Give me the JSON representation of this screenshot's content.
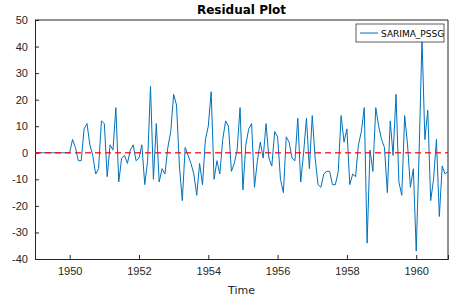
{
  "chart_data": {
    "type": "line",
    "title": "Residual Plot",
    "x_label": "Time",
    "x": [
      1949,
      1949.083,
      1949.167,
      1949.25,
      1949.333,
      1949.417,
      1949.5,
      1949.583,
      1949.667,
      1949.75,
      1949.833,
      1949.917,
      1950,
      1950.083,
      1950.167,
      1950.25,
      1950.333,
      1950.417,
      1950.5,
      1950.583,
      1950.667,
      1950.75,
      1950.833,
      1950.917,
      1951,
      1951.083,
      1951.167,
      1951.25,
      1951.333,
      1951.417,
      1951.5,
      1951.583,
      1951.667,
      1951.75,
      1951.833,
      1951.917,
      1952,
      1952.083,
      1952.167,
      1952.25,
      1952.333,
      1952.417,
      1952.5,
      1952.583,
      1952.667,
      1952.75,
      1952.833,
      1952.917,
      1953,
      1953.083,
      1953.167,
      1953.25,
      1953.333,
      1953.417,
      1953.5,
      1953.583,
      1953.667,
      1953.75,
      1953.833,
      1953.917,
      1954,
      1954.083,
      1954.167,
      1954.25,
      1954.333,
      1954.417,
      1954.5,
      1954.583,
      1954.667,
      1954.75,
      1954.833,
      1954.917,
      1955,
      1955.083,
      1955.167,
      1955.25,
      1955.333,
      1955.417,
      1955.5,
      1955.583,
      1955.667,
      1955.75,
      1955.833,
      1955.917,
      1956,
      1956.083,
      1956.167,
      1956.25,
      1956.333,
      1956.417,
      1956.5,
      1956.583,
      1956.667,
      1956.75,
      1956.833,
      1956.917,
      1957,
      1957.083,
      1957.167,
      1957.25,
      1957.333,
      1957.417,
      1957.5,
      1957.583,
      1957.667,
      1957.75,
      1957.833,
      1957.917,
      1958,
      1958.083,
      1958.167,
      1958.25,
      1958.333,
      1958.417,
      1958.5,
      1958.583,
      1958.667,
      1958.75,
      1958.833,
      1958.917,
      1959,
      1959.083,
      1959.167,
      1959.25,
      1959.333,
      1959.417,
      1959.5,
      1959.583,
      1959.667,
      1959.75,
      1959.833,
      1959.917,
      1960,
      1960.083,
      1960.167,
      1960.25,
      1960.333,
      1960.417,
      1960.5,
      1960.583,
      1960.667,
      1960.75,
      1960.833,
      1960.917
    ],
    "series": [
      {
        "name": "SARIMA_PSSG",
        "color": "#0072bd",
        "values": [
          0,
          0,
          0,
          0,
          0,
          0,
          0,
          0,
          0,
          0,
          0,
          0,
          0,
          5,
          2,
          -3,
          -3,
          9,
          11,
          3,
          -1,
          -8,
          -6,
          12,
          11,
          -9,
          3,
          1,
          17,
          -11,
          -2,
          -1,
          -4,
          1,
          3,
          -3,
          -2,
          3,
          -12,
          -3,
          25,
          -10,
          11,
          -11,
          -6,
          -8,
          2,
          8,
          22,
          18,
          -5,
          -18,
          2,
          -1,
          -4,
          -8,
          -16,
          -4,
          -12,
          5,
          10,
          23,
          -10,
          -3,
          -8,
          5,
          12,
          10,
          -7,
          -4,
          1,
          17,
          -14,
          3,
          9,
          11,
          -13,
          -3,
          4,
          -2,
          11,
          -2,
          -5,
          8,
          6,
          -10,
          -15,
          6,
          4,
          -2,
          -3,
          13,
          -11,
          0,
          13,
          -6,
          14,
          -2,
          -12,
          -13,
          -8,
          -7,
          -7,
          -12,
          -12,
          -7,
          14,
          4,
          9,
          -12,
          -8,
          -9,
          3,
          8,
          17,
          -34,
          1,
          -7,
          17,
          10,
          5,
          2,
          -15,
          12,
          -1,
          22,
          -11,
          -16,
          14,
          3,
          -13,
          -6,
          -37,
          0,
          43,
          5,
          16,
          -18,
          -10,
          5,
          -24,
          -5,
          -8,
          -7
        ]
      }
    ],
    "hline": 0,
    "xlim": [
      1949,
      1960.917
    ],
    "xticks": [
      1950,
      1952,
      1954,
      1956,
      1958,
      1960
    ],
    "ylim": [
      -40,
      50
    ],
    "yticks": [
      -40,
      -30,
      -20,
      -10,
      0,
      10,
      20,
      30,
      40,
      50
    ],
    "legend": "northeast",
    "grid": false
  }
}
